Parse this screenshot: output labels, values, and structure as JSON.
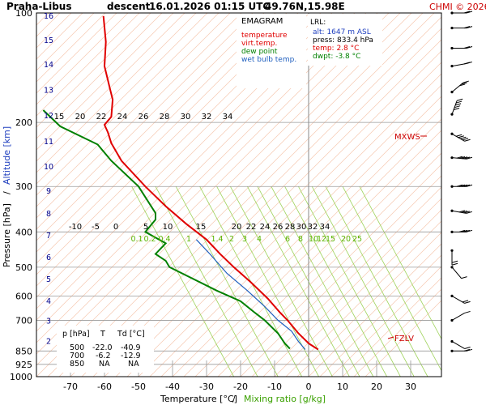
{
  "header": {
    "station": "Praha-Libus",
    "mode": "descent",
    "datetime": "16.01.2026 01:15 UTC",
    "coords": "49.76N,15.98E",
    "copyright": "CHMI © 2026"
  },
  "legend": {
    "title": "EMAGRAM",
    "items": [
      {
        "label": "temperature",
        "color": "#e00000"
      },
      {
        "label": "virt.temp.",
        "color": "#e00000"
      },
      {
        "label": "dew point",
        "color": "#008000"
      },
      {
        "label": "wet bulb temp.",
        "color": "#1f5fbf"
      }
    ]
  },
  "lrl": {
    "title": "LRL:",
    "alt": "alt: 1647 m ASL",
    "press": "press: 833.4 hPa",
    "temp": "temp: 2.8 °C",
    "dwpt": "dwpt: -3.8 °C"
  },
  "table": {
    "headers": [
      "p [hPa]",
      "T",
      "Td [°C]"
    ],
    "rows": [
      [
        "500",
        "-22.0",
        "-40.9"
      ],
      [
        "700",
        "-6.2",
        "-12.9"
      ],
      [
        "850",
        "NA",
        "NA"
      ]
    ]
  },
  "levels": {
    "mxws": "MXWS",
    "fzlv": "FZLV"
  },
  "axes": {
    "y_label_pressure": "Pressure [hPa]",
    "y_sep": "/",
    "y_label_altitude": "Altitude [km]",
    "x_label_temp": "Temperature [°C]",
    "x_sep": "/",
    "x_label_mix": "Mixing ratio [g/kg]"
  },
  "colors": {
    "temperature": "#e00000",
    "dewpoint": "#008000",
    "wetbulb": "#1f5fbf",
    "isotherm": "#f5c8b0",
    "mixing": "#9ed25a",
    "altitude_label": "#00008b"
  },
  "chart_data": {
    "type": "line",
    "title": "Praha-Libus descent 16.01.2026 01:15 UTC 49.76N,15.98E",
    "xlabel": "Temperature [°C] / Mixing ratio [g/kg]",
    "ylabel": "Pressure [hPa] / Altitude [km]",
    "y_scale": "log",
    "xlim": [
      -80,
      40
    ],
    "ylim": [
      1000,
      100
    ],
    "x_ticks": [
      -70,
      -60,
      -50,
      -40,
      -30,
      -20,
      -10,
      0,
      10,
      20,
      30
    ],
    "y_ticks": [
      100,
      200,
      300,
      400,
      500,
      600,
      700,
      850,
      925,
      1000
    ],
    "y_tick_labels": [
      "100",
      "200",
      "300",
      "400",
      "500",
      "600",
      "700",
      "850",
      "925",
      "1000"
    ],
    "altitude_ticks": [
      {
        "km": "2",
        "p": 800
      },
      {
        "km": "3",
        "p": 703
      },
      {
        "km": "4",
        "p": 620
      },
      {
        "km": "5",
        "p": 540
      },
      {
        "km": "6",
        "p": 470
      },
      {
        "km": "7",
        "p": 410
      },
      {
        "km": "8",
        "p": 357
      },
      {
        "km": "9",
        "p": 309
      },
      {
        "km": "10",
        "p": 265
      },
      {
        "km": "11",
        "p": 226
      },
      {
        "km": "12",
        "p": 192
      },
      {
        "km": "13",
        "p": 163
      },
      {
        "km": "14",
        "p": 139
      },
      {
        "km": "15",
        "p": 119
      },
      {
        "km": "16",
        "p": 102
      }
    ],
    "series": [
      {
        "name": "temperature",
        "color": "#e00000",
        "x": [
          2.8,
          0,
          -3,
          -6.2,
          -8.5,
          -12,
          -17,
          -22,
          -26,
          -30,
          -36,
          -42,
          -48,
          -55,
          -58,
          -59,
          -60,
          -58,
          -57.6,
          -58.5,
          -60,
          -59.6,
          -60.3
        ],
        "y": [
          842,
          810,
          760,
          700,
          665,
          610,
          550,
          500,
          460,
          420,
          380,
          340,
          300,
          255,
          228,
          213,
          203,
          193,
          173,
          160,
          140,
          120,
          102
        ]
      },
      {
        "name": "dew point",
        "color": "#008000",
        "x": [
          -5.5,
          -7,
          -9,
          -12.9,
          -16,
          -20,
          -27,
          -40.9,
          -42,
          -45,
          -42,
          -48,
          -45,
          -45,
          -50,
          -58,
          -62,
          -73,
          -78
        ],
        "y": [
          838,
          810,
          760,
          700,
          665,
          620,
          580,
          500,
          480,
          460,
          430,
          400,
          370,
          355,
          300,
          255,
          230,
          205,
          185
        ]
      },
      {
        "name": "wet bulb temp.",
        "color": "#1f5fbf",
        "x": [
          -1,
          -3,
          -5,
          -9,
          -13,
          -18,
          -24,
          -29,
          -33
        ],
        "y": [
          842,
          800,
          750,
          700,
          640,
          580,
          520,
          460,
          420
        ]
      }
    ],
    "isotherm_labels": [
      "15",
      "20",
      "22",
      "24",
      "26",
      "28",
      "30",
      "32",
      "34"
    ],
    "isotherm_labels_mid": [
      "-10",
      "-5",
      "0",
      "5",
      "10",
      "15",
      "20",
      "22",
      "24",
      "26",
      "28",
      "30",
      "32",
      "34"
    ],
    "mixing_ratio_labels": [
      "0.1",
      "0.2",
      "0.4",
      "1",
      "1.4",
      "2",
      "3",
      "4",
      "6",
      "8",
      "10",
      "12",
      "15",
      "20",
      "25"
    ],
    "wind_barbs": [
      {
        "p": 850,
        "dir": 270,
        "speed": 15
      },
      {
        "p": 800,
        "dir": 300,
        "speed": 10
      },
      {
        "p": 700,
        "dir": 240,
        "speed": 5
      },
      {
        "p": 600,
        "dir": 300,
        "speed": 15
      },
      {
        "p": 500,
        "dir": 320,
        "speed": 10
      },
      {
        "p": 450,
        "dir": 0,
        "speed": 15
      },
      {
        "p": 400,
        "dir": 270,
        "speed": 40
      },
      {
        "p": 350,
        "dir": 280,
        "speed": 40
      },
      {
        "p": 300,
        "dir": 270,
        "speed": 50
      },
      {
        "p": 250,
        "dir": 275,
        "speed": 50
      },
      {
        "p": 215,
        "dir": 300,
        "speed": 50
      },
      {
        "p": 190,
        "dir": 200,
        "speed": 80
      },
      {
        "p": 165,
        "dir": 230,
        "speed": 30
      },
      {
        "p": 140,
        "dir": 260,
        "speed": 20
      },
      {
        "p": 125,
        "dir": 270,
        "speed": 20
      },
      {
        "p": 110,
        "dir": 270,
        "speed": 15
      },
      {
        "p": 100,
        "dir": 270,
        "speed": 15
      }
    ]
  }
}
